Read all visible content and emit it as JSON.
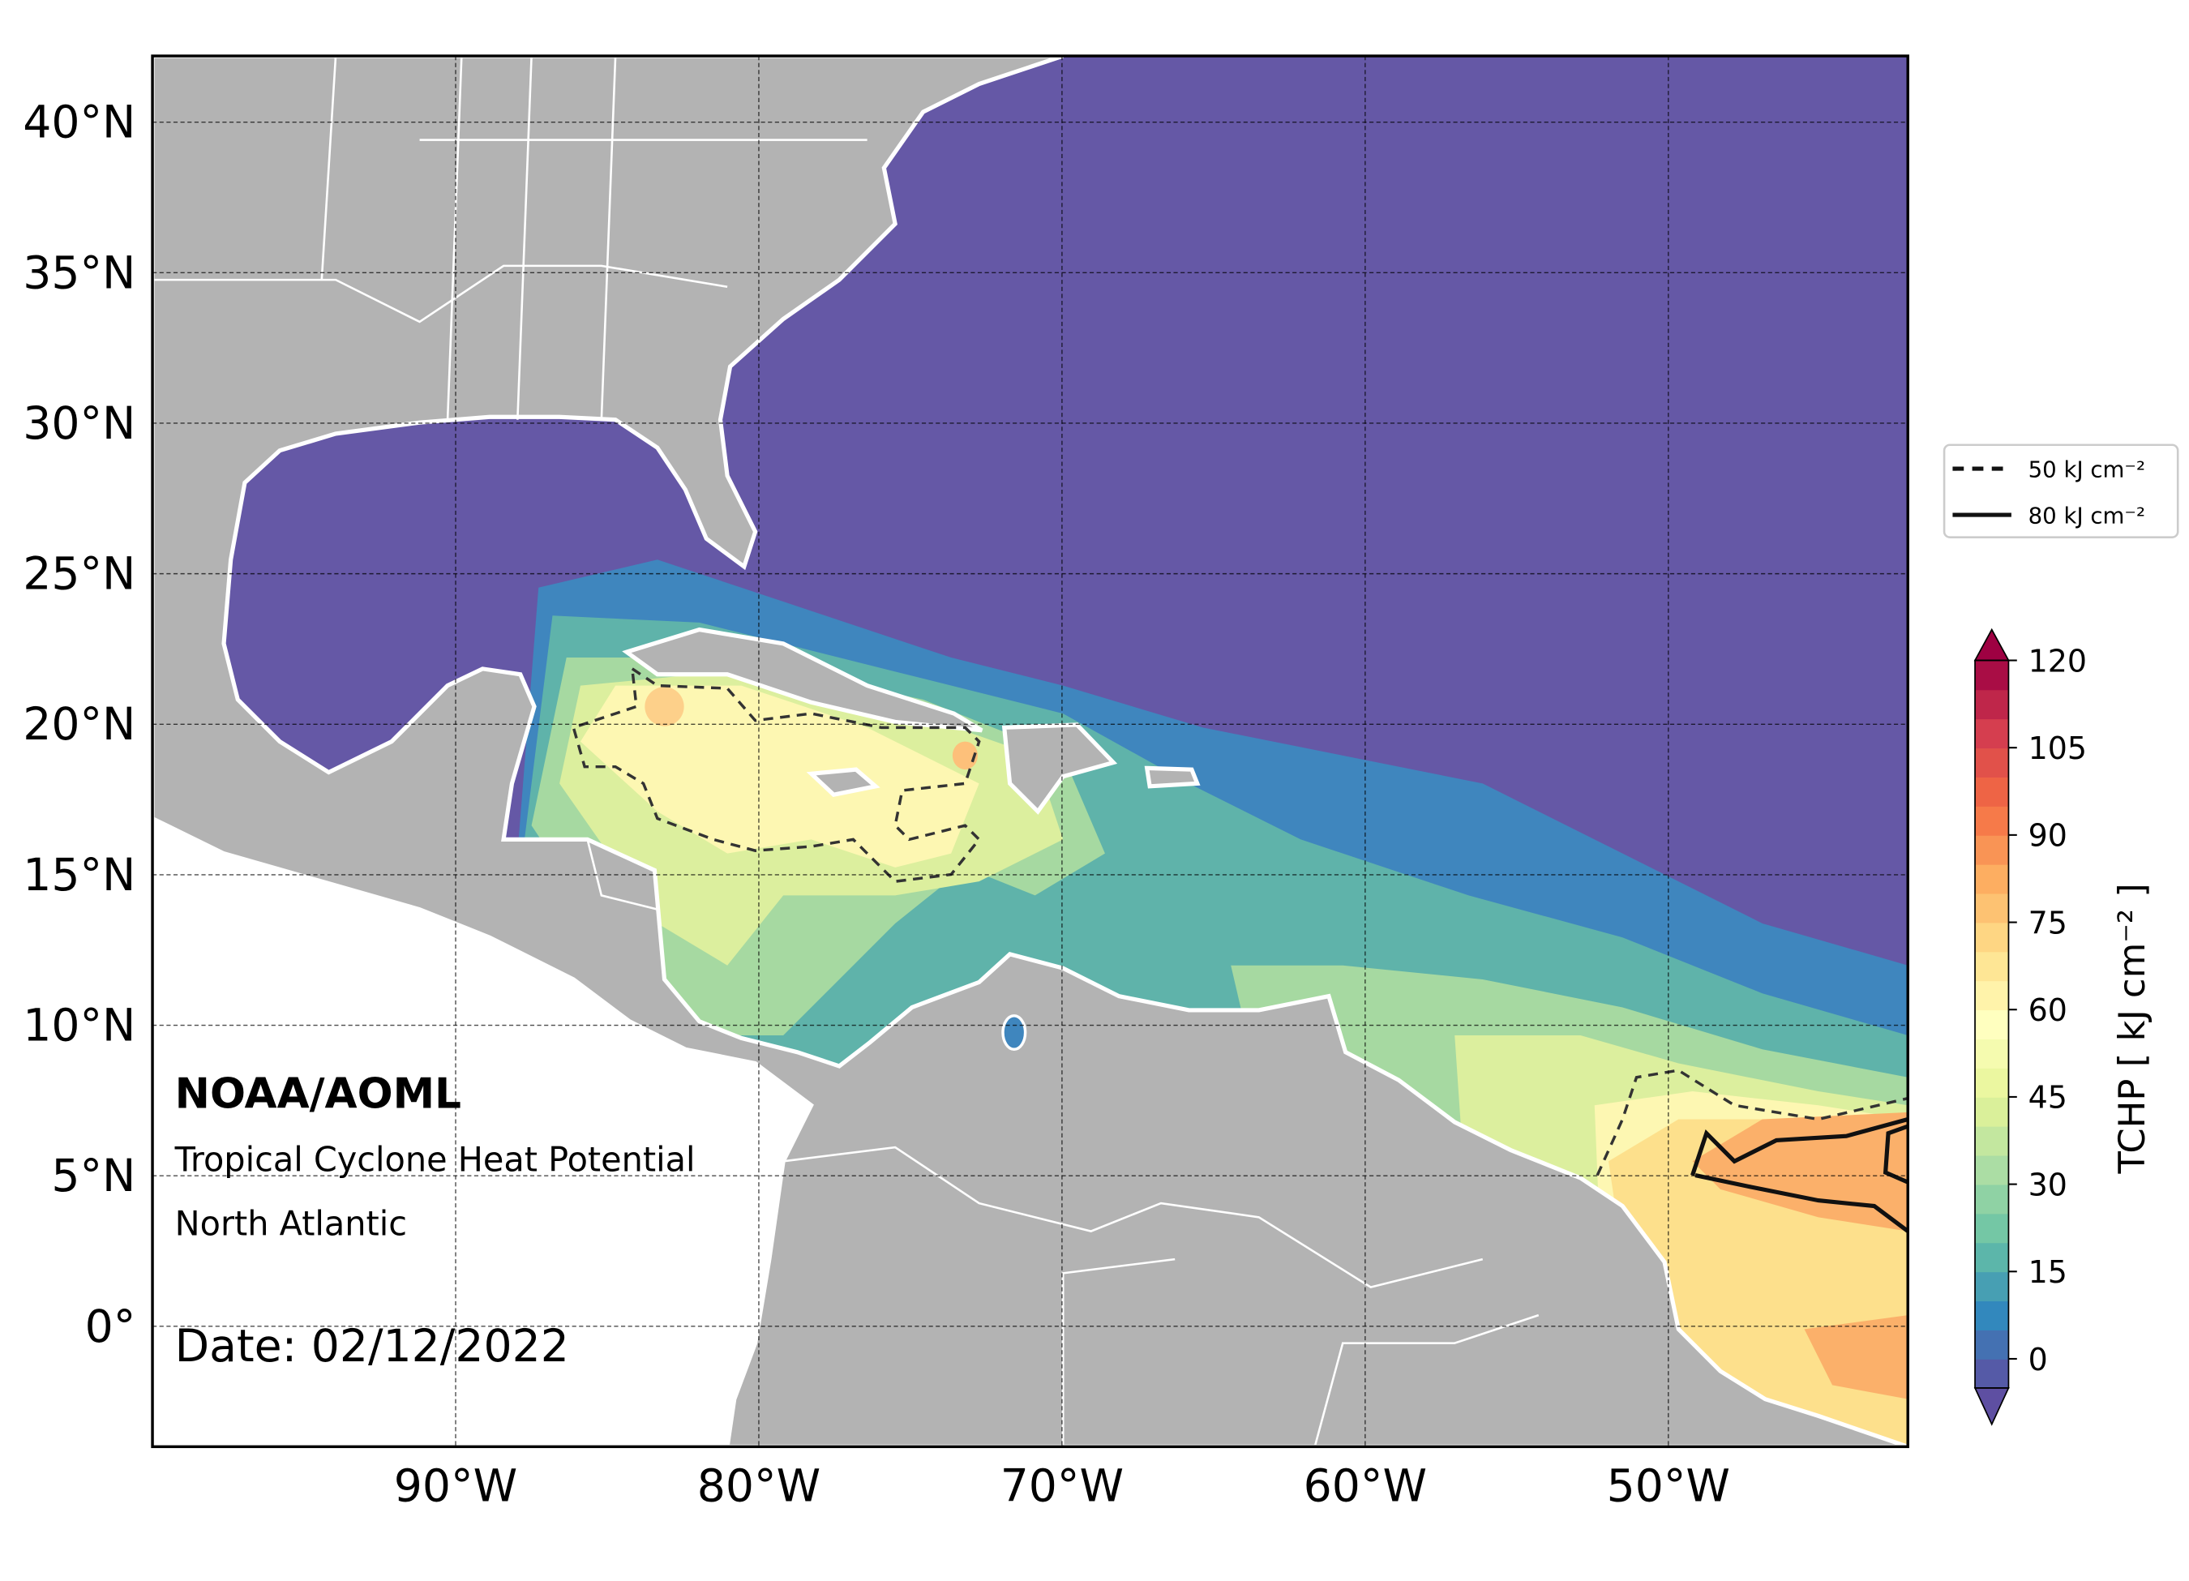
{
  "map": {
    "xlim": [
      -100,
      -42.1
    ],
    "ylim": [
      -4,
      42.2
    ],
    "xticks": [
      {
        "value": -90,
        "label": "90°W"
      },
      {
        "value": -80,
        "label": "80°W"
      },
      {
        "value": -70,
        "label": "70°W"
      },
      {
        "value": -60,
        "label": "60°W"
      },
      {
        "value": -50,
        "label": "50°W"
      }
    ],
    "yticks": [
      {
        "value": 0,
        "label": "0°"
      },
      {
        "value": 5,
        "label": "5°N"
      },
      {
        "value": 10,
        "label": "10°N"
      },
      {
        "value": 15,
        "label": "15°N"
      },
      {
        "value": 20,
        "label": "20°N"
      },
      {
        "value": 25,
        "label": "25°N"
      },
      {
        "value": 30,
        "label": "30°N"
      },
      {
        "value": 35,
        "label": "35°N"
      },
      {
        "value": 40,
        "label": "40°N"
      }
    ],
    "grid": true
  },
  "annotations": {
    "org": "NOAA/AOML",
    "product": "Tropical Cyclone Heat Potential",
    "region": "North Atlantic",
    "date": "Date: 02/12/2022"
  },
  "legend": {
    "entries": [
      {
        "label": "50 kJ cm⁻²",
        "style": "dashed"
      },
      {
        "label": "80 kJ cm⁻²",
        "style": "solid"
      }
    ]
  },
  "colorbar": {
    "label": "TCHP [ kJ cm⁻² ]",
    "lim": [
      -5,
      120
    ],
    "step": 5,
    "ticks": [
      0,
      15,
      30,
      45,
      60,
      75,
      90,
      105,
      120
    ],
    "extend": "both",
    "colors": [
      "#5e4fa2",
      "#3288bd",
      "#66c2a5",
      "#abdda4",
      "#e6f598",
      "#ffffbf",
      "#fee08b",
      "#fdae61",
      "#f46d43",
      "#d53e4f",
      "#9e0142"
    ]
  }
}
